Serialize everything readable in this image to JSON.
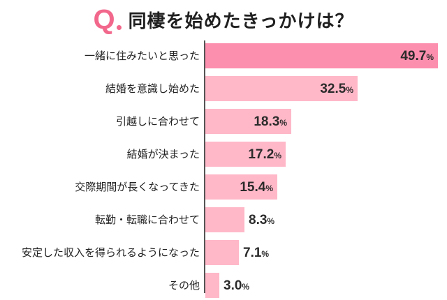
{
  "title": {
    "q": "Q",
    "text": "同棲を始めたきっかけは？"
  },
  "colors": {
    "accent": "#f2688c",
    "bar_top": "#fd8fae",
    "bar": "#ffb8c8"
  },
  "chart_data": {
    "type": "bar",
    "orientation": "horizontal",
    "title": "同棲を始めたきっかけは？",
    "xlabel": "",
    "ylabel": "",
    "unit": "%",
    "categories": [
      "一緒に住みたいと思った",
      "結婚を意識し始めた",
      "引越しに合わせて",
      "結婚が決まった",
      "交際期間が長くなってきた",
      "転勤・転職に合わせて",
      "安定した収入を得られるようになった",
      "その他"
    ],
    "values": [
      49.7,
      32.5,
      18.3,
      17.2,
      15.4,
      8.3,
      7.1,
      3.0
    ],
    "grid": false,
    "legend": null
  },
  "rows": [
    {
      "label": "一緒に住みたいと思った",
      "value": "49.7",
      "pct": "%"
    },
    {
      "label": "結婚を意識し始めた",
      "value": "32.5",
      "pct": "%"
    },
    {
      "label": "引越しに合わせて",
      "value": "18.3",
      "pct": "%"
    },
    {
      "label": "結婚が決まった",
      "value": "17.2",
      "pct": "%"
    },
    {
      "label": "交際期間が長くなってきた",
      "value": "15.4",
      "pct": "%"
    },
    {
      "label": "転勤・転職に合わせて",
      "value": "8.3",
      "pct": "%"
    },
    {
      "label": "安定した収入を得られるようになった",
      "value": "7.1",
      "pct": "%"
    },
    {
      "label": "その他",
      "value": "3.0",
      "pct": "%"
    }
  ]
}
